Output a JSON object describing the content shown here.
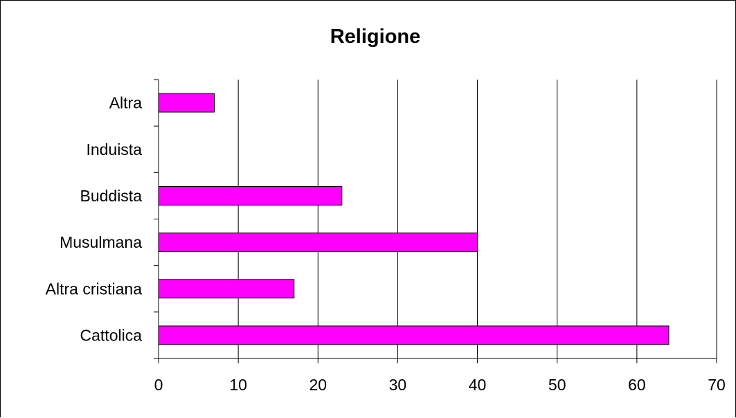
{
  "chart_data": {
    "type": "bar",
    "orientation": "horizontal",
    "title": "Religione",
    "xlabel": "",
    "ylabel": "",
    "categories": [
      "Cattolica",
      "Altra cristiana",
      "Musulmana",
      "Buddista",
      "Induista",
      "Altra"
    ],
    "values": [
      64,
      17,
      40,
      23,
      0,
      7
    ],
    "xlim": [
      0,
      70
    ],
    "x_ticks": [
      0,
      10,
      20,
      30,
      40,
      50,
      60,
      70
    ],
    "grid": "vertical",
    "legend": "none",
    "bar_color": "#FF00FF",
    "bar_edge_color": "#000000"
  }
}
